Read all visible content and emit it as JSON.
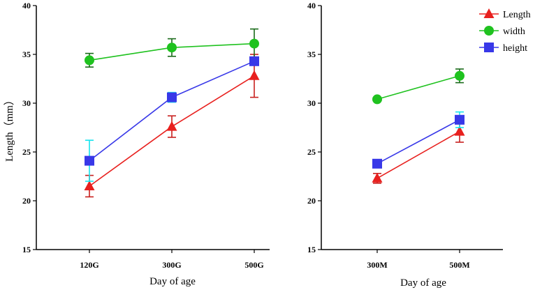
{
  "chart_data": [
    {
      "type": "line",
      "categories": [
        "120G",
        "300G",
        "500G"
      ],
      "xlabel": "Day of age",
      "ylabel": "Length（mm）",
      "ylim": [
        15,
        40
      ],
      "yticks": [
        15,
        20,
        25,
        30,
        35,
        40
      ],
      "series": [
        {
          "name": "Length",
          "color": "#e8201e",
          "errColor": "#c8201e",
          "marker": "triangle",
          "values": [
            21.5,
            27.6,
            32.8
          ],
          "err": [
            1.1,
            1.1,
            2.2
          ]
        },
        {
          "name": "width",
          "color": "#1fc21f",
          "errColor": "#1a6a1a",
          "marker": "circle",
          "values": [
            34.4,
            35.7,
            36.1
          ],
          "err": [
            0.7,
            0.9,
            1.5
          ]
        },
        {
          "name": "height",
          "color": "#3838e8",
          "errColor": "#16e4ee",
          "marker": "square",
          "values": [
            24.1,
            30.6,
            34.3
          ],
          "err": [
            2.1,
            0.5,
            0.4
          ]
        }
      ]
    },
    {
      "type": "line",
      "categories": [
        "300M",
        "500M"
      ],
      "xlabel": "Day of age",
      "ylabel": "",
      "ylim": [
        15,
        40
      ],
      "yticks": [
        15,
        20,
        25,
        30,
        35,
        40
      ],
      "series": [
        {
          "name": "Length",
          "color": "#e8201e",
          "errColor": "#c8201e",
          "marker": "triangle",
          "values": [
            22.3,
            27.1
          ],
          "err": [
            0.5,
            1.1
          ]
        },
        {
          "name": "width",
          "color": "#1fc21f",
          "errColor": "#1a6a1a",
          "marker": "circle",
          "values": [
            30.4,
            32.8
          ],
          "err": [
            0.1,
            0.7
          ]
        },
        {
          "name": "height",
          "color": "#3838e8",
          "errColor": "#16e4ee",
          "marker": "square",
          "values": [
            23.8,
            28.3
          ],
          "err": [
            0.3,
            0.8
          ]
        }
      ]
    }
  ],
  "legend": [
    {
      "label": "Length",
      "color": "#e8201e",
      "marker": "triangle"
    },
    {
      "label": "width",
      "color": "#1fc21f",
      "marker": "circle"
    },
    {
      "label": " height",
      "color": "#3838e8",
      "marker": "square"
    }
  ]
}
